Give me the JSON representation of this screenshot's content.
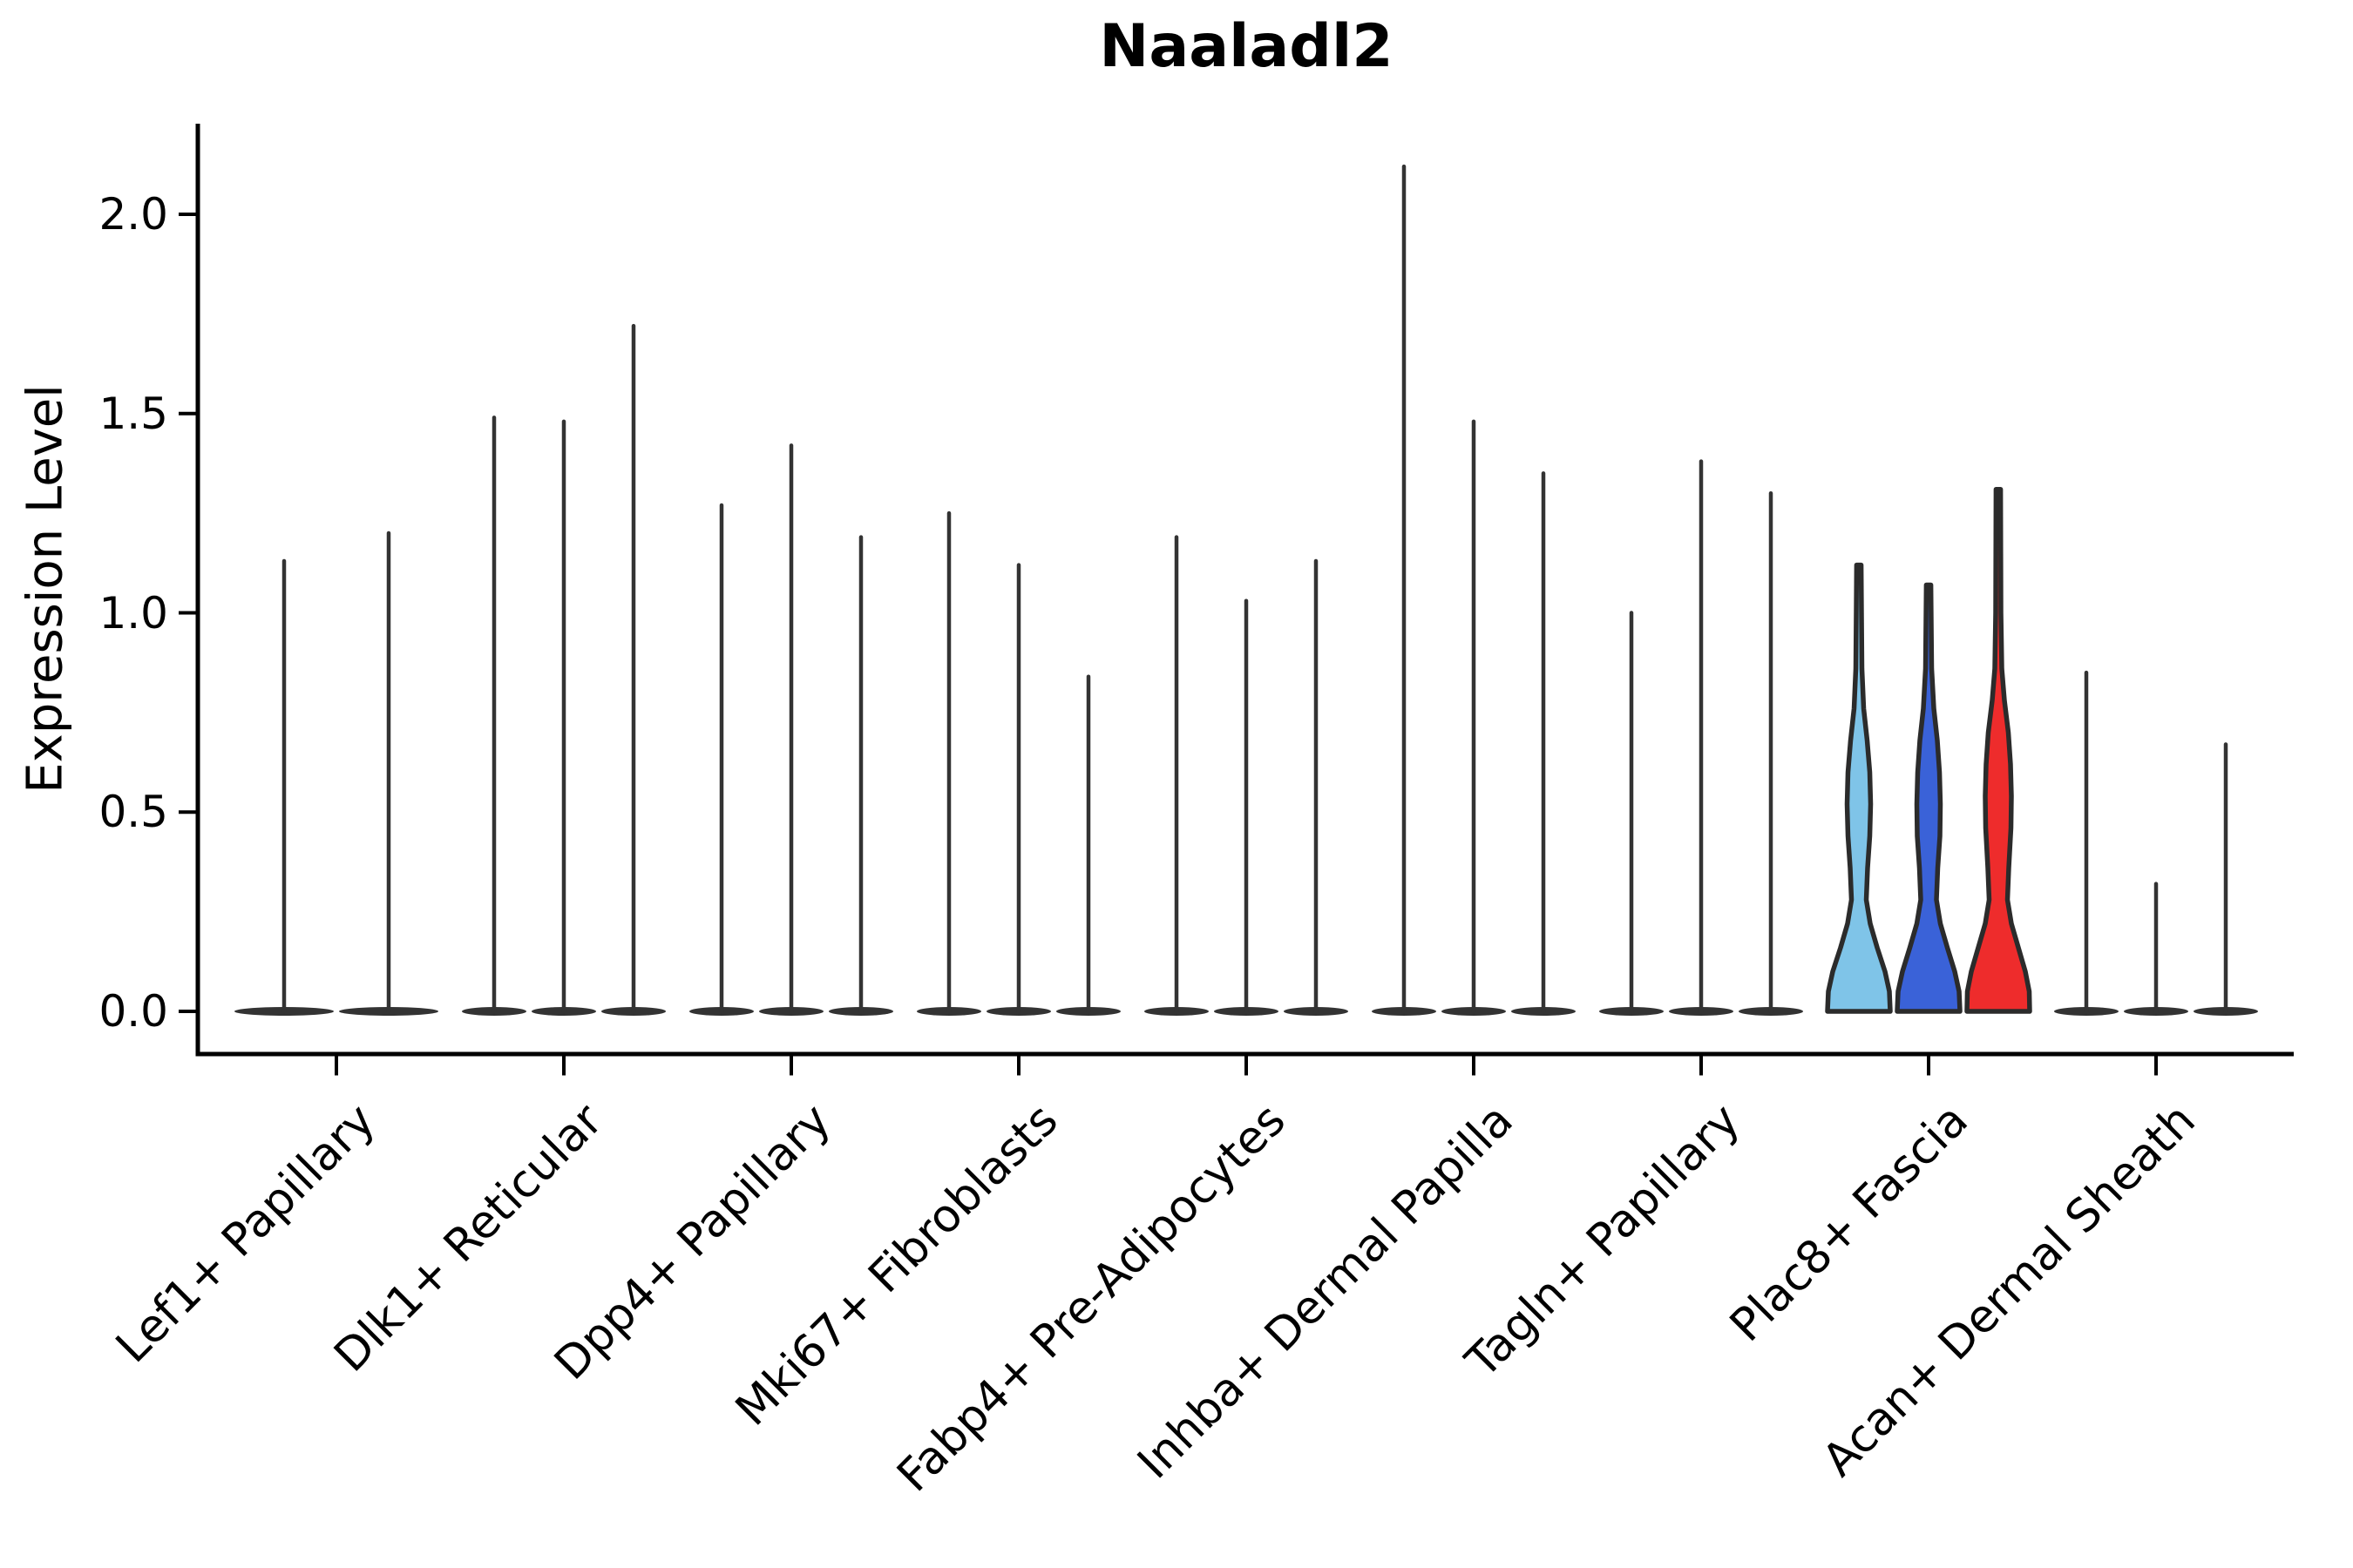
{
  "chart_data": {
    "type": "violin",
    "title": "Naaladl2",
    "ylabel": "Expression Level",
    "xlabel": "",
    "ylim": [
      -0.11,
      2.23
    ],
    "y_ticks": [
      0.0,
      0.5,
      1.0,
      1.5,
      2.0
    ],
    "y_tick_labels": [
      "0.0",
      "0.5",
      "1.0",
      "1.5",
      "2.0"
    ],
    "grid": "off",
    "legend": "none",
    "default_violin_color": "#333333",
    "edge_color": "#2b2b2b",
    "description": "Grouped violin plot; most violins are collapsed to a flat mass at 0 with a thin tail up to the max expression value. Only the Plac8+ Fascia group shows filled colored violins with visible density bodies.",
    "groups": [
      {
        "label": "Lef1+ Papillary",
        "violins": [
          {
            "max": 1.13
          },
          {
            "max": 1.2
          }
        ]
      },
      {
        "label": "Dlk1+ Reticular",
        "violins": [
          {
            "max": 1.49
          },
          {
            "max": 1.48
          },
          {
            "max": 1.72
          }
        ]
      },
      {
        "label": "Dpp4+ Papillary",
        "violins": [
          {
            "max": 1.27
          },
          {
            "max": 1.42
          },
          {
            "max": 1.19
          }
        ]
      },
      {
        "label": "Mki67+ Fibroblasts",
        "violins": [
          {
            "max": 1.25
          },
          {
            "max": 1.12
          },
          {
            "max": 0.84
          }
        ]
      },
      {
        "label": "Fabp4+ Pre-Adipocytes",
        "violins": [
          {
            "max": 1.19
          },
          {
            "max": 1.03
          },
          {
            "max": 1.13
          }
        ]
      },
      {
        "label": "Inhba+ Dermal Papilla",
        "violins": [
          {
            "max": 2.12
          },
          {
            "max": 1.48
          },
          {
            "max": 1.35
          }
        ]
      },
      {
        "label": "Tagln+ Papillary",
        "violins": [
          {
            "max": 1.0
          },
          {
            "max": 1.38
          },
          {
            "max": 1.3
          }
        ]
      },
      {
        "label": "Plac8+ Fascia",
        "violins": [
          {
            "max": 1.12,
            "fill": "#7FC4E8",
            "profile": [
              [
                0,
                36
              ],
              [
                0.05,
                35
              ],
              [
                0.1,
                30
              ],
              [
                0.16,
                21
              ],
              [
                0.22,
                13
              ],
              [
                0.28,
                8.5
              ],
              [
                0.36,
                10
              ],
              [
                0.44,
                12.5
              ],
              [
                0.52,
                13.5
              ],
              [
                0.6,
                12.5
              ],
              [
                0.68,
                9.5
              ],
              [
                0.76,
                5.5
              ],
              [
                0.86,
                3.5
              ],
              [
                1.0,
                3
              ],
              [
                1.12,
                2.6
              ]
            ]
          },
          {
            "max": 1.07,
            "fill": "#3A62D8",
            "profile": [
              [
                0,
                36
              ],
              [
                0.05,
                35
              ],
              [
                0.1,
                30
              ],
              [
                0.16,
                21.5
              ],
              [
                0.22,
                13.5
              ],
              [
                0.28,
                9
              ],
              [
                0.36,
                10.5
              ],
              [
                0.44,
                13
              ],
              [
                0.52,
                13.5
              ],
              [
                0.6,
                12.5
              ],
              [
                0.68,
                10
              ],
              [
                0.76,
                6
              ],
              [
                0.86,
                3.5
              ],
              [
                1.07,
                2.6
              ]
            ]
          },
          {
            "max": 1.31,
            "fill": "#EE2C2C",
            "profile": [
              [
                0,
                36
              ],
              [
                0.05,
                35.5
              ],
              [
                0.1,
                31
              ],
              [
                0.16,
                23
              ],
              [
                0.22,
                15
              ],
              [
                0.28,
                10.5
              ],
              [
                0.36,
                12
              ],
              [
                0.46,
                14.5
              ],
              [
                0.54,
                15
              ],
              [
                0.62,
                14
              ],
              [
                0.7,
                11.5
              ],
              [
                0.78,
                7
              ],
              [
                0.86,
                4
              ],
              [
                1.0,
                3
              ],
              [
                1.31,
                2.6
              ]
            ]
          }
        ]
      },
      {
        "label": "Acan+ Dermal Sheath",
        "violins": [
          {
            "max": 0.85
          },
          {
            "max": 0.32
          },
          {
            "max": 0.67
          }
        ]
      }
    ]
  }
}
